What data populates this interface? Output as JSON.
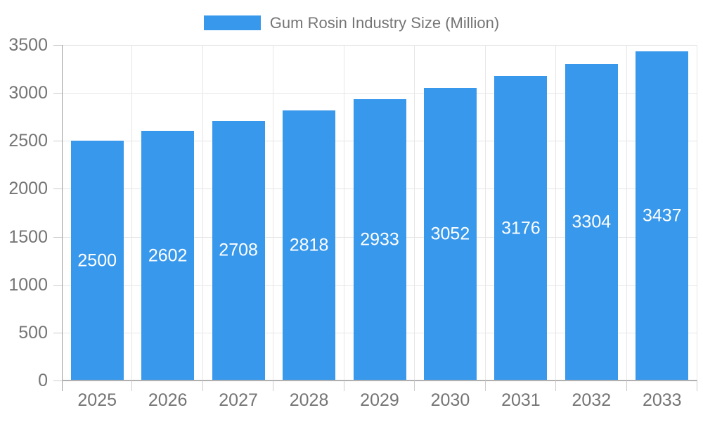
{
  "chart_data": {
    "type": "bar",
    "title": "Gum Rosin Industry Size (Million)",
    "legend": {
      "label": "Gum Rosin Industry Size (Million)",
      "position": "top"
    },
    "categories": [
      "2025",
      "2026",
      "2027",
      "2028",
      "2029",
      "2030",
      "2031",
      "2032",
      "2033"
    ],
    "series": [
      {
        "name": "Gum Rosin Industry Size (Million)",
        "values": [
          2500,
          2602,
          2708,
          2818,
          2933,
          3052,
          3176,
          3304,
          3437
        ]
      }
    ],
    "bar_labels": [
      "2500",
      "2602",
      "2708",
      "2818",
      "2933",
      "3052",
      "3176",
      "3304",
      "3437"
    ],
    "xlabel": "",
    "ylabel": "",
    "ylim": [
      0,
      3500
    ],
    "ytick_step": 500,
    "ytick_labels": [
      "0",
      "500",
      "1000",
      "1500",
      "2000",
      "2500",
      "3000",
      "3500"
    ],
    "grid": true,
    "colors": {
      "bar": "#3898ec",
      "axis_text": "#757575",
      "bar_label_text": "#ffffff",
      "gridline": "#e6e6e6",
      "axis_line": "#9e9e9e",
      "baseline": "#b0b0b0",
      "tick": "#cccccc",
      "background": "#ffffff"
    }
  }
}
